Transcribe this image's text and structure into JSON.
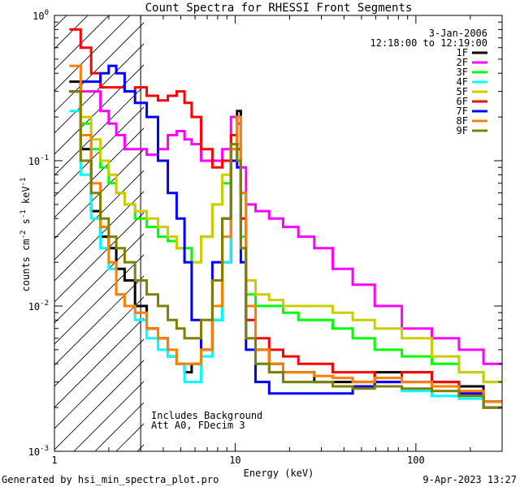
{
  "chart_data": {
    "type": "line",
    "title": "Count Spectra for RHESSI Front Segments",
    "xlabel": "Energy (keV)",
    "ylabel": "counts cm-2 s-1 keV-1",
    "xscale": "log",
    "yscale": "log",
    "xlim": [
      1,
      300
    ],
    "ylim": [
      0.001,
      1
    ],
    "x_ticks": [
      "1",
      "10",
      "100"
    ],
    "y_ticks": [
      "10^-3",
      "10^-2",
      "10^-1",
      "10^0"
    ],
    "date": "3-Jan-2006",
    "time_range": "12:18:00 to 12:19:00",
    "annotation_lines": [
      "Includes Background",
      "Att A0, FDecim 3"
    ],
    "footer_left": "Generated by hsi_min_spectra_plot.pro",
    "footer_right": "9-Apr-2023 13:27",
    "legend_position": "top-right",
    "shaded_region_xmax": 3,
    "series": [
      {
        "name": "1F",
        "color": "#000000",
        "x": [
          1.3,
          1.5,
          1.7,
          1.9,
          2.1,
          2.3,
          2.6,
          3.0,
          3.5,
          4.0,
          4.5,
          5.0,
          5.5,
          6.0,
          7.0,
          8.0,
          9.0,
          10.0,
          10.5,
          11.0,
          12.0,
          14.0,
          17.0,
          20.0,
          25.0,
          30.0,
          40.0,
          50.0,
          70.0,
          100.0,
          150.0,
          200.0,
          280.0
        ],
        "y": [
          0.35,
          0.12,
          0.045,
          0.03,
          0.025,
          0.018,
          0.015,
          0.01,
          0.007,
          0.006,
          0.0045,
          0.004,
          0.0035,
          0.004,
          0.005,
          0.008,
          0.02,
          0.1,
          0.22,
          0.06,
          0.01,
          0.005,
          0.004,
          0.0035,
          0.0035,
          0.003,
          0.003,
          0.003,
          0.0035,
          0.0035,
          0.003,
          0.0028,
          0.0022
        ]
      },
      {
        "name": "2F",
        "color": "#ff00ff",
        "x": [
          1.3,
          1.5,
          1.7,
          1.9,
          2.1,
          2.3,
          2.6,
          3.0,
          3.5,
          4.0,
          4.5,
          5.0,
          5.5,
          6.0,
          7.0,
          8.0,
          9.0,
          10.0,
          10.5,
          11.0,
          12.0,
          14.0,
          17.0,
          20.0,
          25.0,
          30.0,
          40.0,
          50.0,
          70.0,
          100.0,
          150.0,
          200.0,
          280.0
        ],
        "y": [
          0.3,
          0.3,
          0.3,
          0.22,
          0.18,
          0.15,
          0.12,
          0.12,
          0.11,
          0.12,
          0.15,
          0.16,
          0.14,
          0.13,
          0.1,
          0.1,
          0.12,
          0.2,
          0.18,
          0.09,
          0.05,
          0.045,
          0.04,
          0.035,
          0.03,
          0.025,
          0.018,
          0.014,
          0.01,
          0.007,
          0.006,
          0.005,
          0.004
        ]
      },
      {
        "name": "3F",
        "color": "#00ff00",
        "x": [
          1.3,
          1.5,
          1.7,
          1.9,
          2.1,
          2.3,
          2.6,
          3.0,
          3.5,
          4.0,
          4.5,
          5.0,
          5.5,
          6.0,
          7.0,
          8.0,
          9.0,
          10.0,
          10.5,
          11.0,
          12.0,
          14.0,
          17.0,
          20.0,
          25.0,
          30.0,
          40.0,
          50.0,
          70.0,
          100.0,
          150.0,
          200.0,
          280.0
        ],
        "y": [
          0.3,
          0.18,
          0.12,
          0.09,
          0.07,
          0.06,
          0.05,
          0.04,
          0.035,
          0.03,
          0.028,
          0.025,
          0.025,
          0.02,
          0.03,
          0.05,
          0.07,
          0.12,
          0.1,
          0.03,
          0.012,
          0.01,
          0.01,
          0.009,
          0.008,
          0.008,
          0.007,
          0.006,
          0.005,
          0.0045,
          0.004,
          0.0035,
          0.003
        ]
      },
      {
        "name": "4F",
        "color": "#00ffff",
        "x": [
          1.3,
          1.5,
          1.7,
          1.9,
          2.1,
          2.3,
          2.6,
          3.0,
          3.5,
          4.0,
          4.5,
          5.0,
          5.5,
          6.0,
          7.0,
          8.0,
          9.0,
          10.0,
          10.5,
          11.0,
          12.0,
          14.0,
          17.0,
          20.0,
          25.0,
          30.0,
          40.0,
          50.0,
          70.0,
          100.0,
          150.0,
          200.0,
          280.0
        ],
        "y": [
          0.22,
          0.08,
          0.04,
          0.025,
          0.018,
          0.012,
          0.01,
          0.008,
          0.006,
          0.005,
          0.0045,
          0.004,
          0.003,
          0.003,
          0.0045,
          0.008,
          0.02,
          0.1,
          0.2,
          0.06,
          0.008,
          0.004,
          0.0035,
          0.003,
          0.003,
          0.003,
          0.0028,
          0.0028,
          0.0028,
          0.0026,
          0.0024,
          0.0023,
          0.002
        ]
      },
      {
        "name": "5F",
        "color": "#cccc00",
        "x": [
          1.3,
          1.5,
          1.7,
          1.9,
          2.1,
          2.3,
          2.6,
          3.0,
          3.5,
          4.0,
          4.5,
          5.0,
          5.5,
          6.0,
          7.0,
          8.0,
          9.0,
          10.0,
          10.5,
          11.0,
          12.0,
          14.0,
          17.0,
          20.0,
          25.0,
          30.0,
          40.0,
          50.0,
          70.0,
          100.0,
          150.0,
          200.0,
          280.0
        ],
        "y": [
          0.3,
          0.2,
          0.14,
          0.1,
          0.08,
          0.06,
          0.05,
          0.045,
          0.04,
          0.035,
          0.03,
          0.025,
          0.02,
          0.02,
          0.03,
          0.05,
          0.08,
          0.15,
          0.13,
          0.04,
          0.015,
          0.012,
          0.011,
          0.01,
          0.01,
          0.01,
          0.009,
          0.008,
          0.007,
          0.006,
          0.0045,
          0.0035,
          0.003
        ]
      },
      {
        "name": "6F",
        "color": "#ff0000",
        "x": [
          1.3,
          1.5,
          1.7,
          1.9,
          2.1,
          2.3,
          2.6,
          3.0,
          3.5,
          4.0,
          4.5,
          5.0,
          5.5,
          6.0,
          7.0,
          8.0,
          9.0,
          10.0,
          10.5,
          11.0,
          12.0,
          14.0,
          17.0,
          20.0,
          25.0,
          30.0,
          40.0,
          50.0,
          70.0,
          100.0,
          150.0,
          200.0,
          280.0
        ],
        "y": [
          0.8,
          0.6,
          0.4,
          0.32,
          0.32,
          0.32,
          0.3,
          0.32,
          0.28,
          0.26,
          0.28,
          0.3,
          0.25,
          0.2,
          0.12,
          0.09,
          0.1,
          0.15,
          0.12,
          0.04,
          0.008,
          0.006,
          0.005,
          0.0045,
          0.004,
          0.004,
          0.0035,
          0.0035,
          0.003,
          0.0035,
          0.003,
          0.0025,
          0.002
        ]
      },
      {
        "name": "7F",
        "color": "#0000ff",
        "x": [
          1.3,
          1.5,
          1.7,
          1.9,
          2.1,
          2.3,
          2.6,
          3.0,
          3.5,
          4.0,
          4.5,
          5.0,
          5.5,
          6.0,
          7.0,
          8.0,
          9.0,
          10.0,
          10.5,
          11.0,
          12.0,
          14.0,
          17.0,
          20.0,
          25.0,
          30.0,
          40.0,
          50.0,
          70.0,
          100.0,
          150.0,
          200.0,
          280.0
        ],
        "y": [
          0.3,
          0.35,
          0.35,
          0.4,
          0.45,
          0.4,
          0.3,
          0.25,
          0.2,
          0.1,
          0.06,
          0.04,
          0.02,
          0.008,
          0.005,
          0.02,
          0.04,
          0.1,
          0.09,
          0.02,
          0.005,
          0.003,
          0.0025,
          0.0025,
          0.0025,
          0.0025,
          0.0025,
          0.0028,
          0.003,
          0.003,
          0.0028,
          0.0025,
          0.002
        ]
      },
      {
        "name": "8F",
        "color": "#ff8000",
        "x": [
          1.3,
          1.5,
          1.7,
          1.9,
          2.1,
          2.3,
          2.6,
          3.0,
          3.5,
          4.0,
          4.5,
          5.0,
          5.5,
          6.0,
          7.0,
          8.0,
          9.0,
          10.0,
          10.5,
          11.0,
          12.0,
          14.0,
          17.0,
          20.0,
          25.0,
          30.0,
          40.0,
          50.0,
          70.0,
          100.0,
          150.0,
          200.0,
          280.0
        ],
        "y": [
          0.45,
          0.15,
          0.07,
          0.035,
          0.02,
          0.012,
          0.01,
          0.009,
          0.007,
          0.006,
          0.005,
          0.004,
          0.004,
          0.004,
          0.005,
          0.01,
          0.03,
          0.12,
          0.2,
          0.06,
          0.01,
          0.005,
          0.004,
          0.0035,
          0.0035,
          0.0033,
          0.0032,
          0.003,
          0.0032,
          0.003,
          0.0028,
          0.0026,
          0.0022
        ]
      },
      {
        "name": "9F",
        "color": "#808000",
        "x": [
          1.3,
          1.5,
          1.7,
          1.9,
          2.1,
          2.3,
          2.6,
          3.0,
          3.5,
          4.0,
          4.5,
          5.0,
          5.5,
          6.0,
          7.0,
          8.0,
          9.0,
          10.0,
          10.5,
          11.0,
          12.0,
          14.0,
          17.0,
          20.0,
          25.0,
          30.0,
          40.0,
          50.0,
          70.0,
          100.0,
          150.0,
          200.0,
          280.0
        ],
        "y": [
          0.3,
          0.1,
          0.06,
          0.04,
          0.03,
          0.025,
          0.02,
          0.015,
          0.012,
          0.01,
          0.008,
          0.007,
          0.006,
          0.006,
          0.008,
          0.015,
          0.04,
          0.13,
          0.1,
          0.025,
          0.006,
          0.004,
          0.0035,
          0.003,
          0.003,
          0.003,
          0.0028,
          0.0027,
          0.0028,
          0.0027,
          0.0026,
          0.0024,
          0.002
        ]
      }
    ]
  }
}
